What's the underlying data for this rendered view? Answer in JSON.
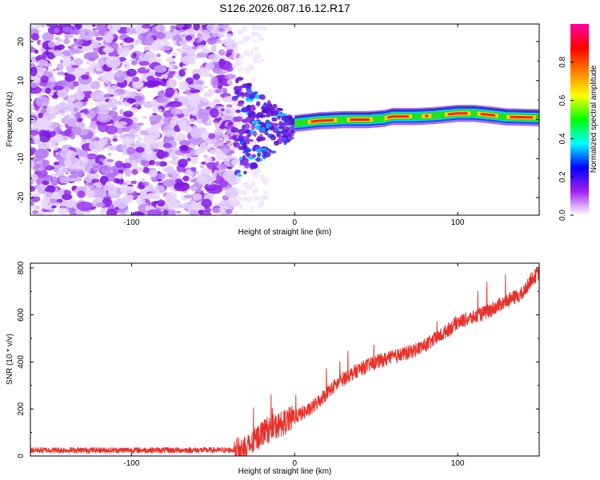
{
  "figure_title": "S126.2026.087.16.12.R17",
  "chart_data": [
    {
      "type": "heatmap",
      "title": "S126.2026.087.16.12.R17",
      "xlabel": "Height of straight line (km)",
      "ylabel": "Frequency (Hz)",
      "xlim": [
        -162,
        150
      ],
      "ylim": [
        -24.5,
        24.5
      ],
      "xticks": [
        -100,
        0,
        100
      ],
      "yticks": [
        -20,
        -10,
        0,
        10,
        20
      ],
      "xtick_labels": [
        "-100",
        "0",
        "100"
      ],
      "ytick_labels": [
        "-20",
        "-10",
        "0",
        "10",
        "20"
      ],
      "colorbar": {
        "label": "Normalized spectral amplitude",
        "range": [
          0.0,
          1.0
        ],
        "ticks": [
          0.0,
          0.2,
          0.4,
          0.6,
          0.8
        ],
        "tick_labels": [
          "0.0",
          "0.2",
          "0.4",
          "0.6",
          "0.8"
        ],
        "colormap": [
          "#ffffff",
          "#a020f0",
          "#0000ff",
          "#00ffff",
          "#00ff00",
          "#ffff00",
          "#ff8000",
          "#ff0000",
          "#ff00a0"
        ]
      },
      "noise_region_x": [
        -162,
        -37
      ],
      "transition_region_x": [
        -37,
        0
      ],
      "signal_trace": {
        "x": [
          0,
          15,
          30,
          45,
          55,
          60,
          75,
          85,
          90,
          100,
          110,
          120,
          130,
          140,
          150
        ],
        "frequency": [
          -1.0,
          -0.3,
          0.0,
          0.0,
          0.3,
          0.8,
          0.8,
          1.0,
          1.2,
          1.6,
          1.6,
          1.2,
          0.7,
          0.6,
          0.5
        ]
      }
    },
    {
      "type": "line",
      "xlabel": "Height of straight line (km)",
      "ylabel": "SNR (10 * v/v)",
      "xlim": [
        -162,
        150
      ],
      "ylim": [
        0,
        820
      ],
      "xticks": [
        -100,
        0,
        100
      ],
      "yticks": [
        0,
        200,
        400,
        600,
        800
      ],
      "xtick_labels": [
        "-100",
        "0",
        "100"
      ],
      "ytick_labels": [
        "0",
        "200",
        "400",
        "600",
        "800"
      ],
      "series": [
        {
          "name": "SNR",
          "color": "#e8312a",
          "x": [
            -162,
            -140,
            -120,
            -100,
            -80,
            -60,
            -40,
            -30,
            -25,
            -20,
            -10,
            0,
            10,
            20,
            30,
            40,
            50,
            60,
            70,
            80,
            90,
            100,
            110,
            120,
            130,
            140,
            145,
            150
          ],
          "y": [
            25,
            25,
            25,
            25,
            25,
            25,
            25,
            30,
            60,
            100,
            130,
            165,
            200,
            270,
            330,
            370,
            400,
            420,
            440,
            470,
            515,
            570,
            590,
            620,
            660,
            690,
            750,
            780
          ]
        }
      ]
    }
  ]
}
